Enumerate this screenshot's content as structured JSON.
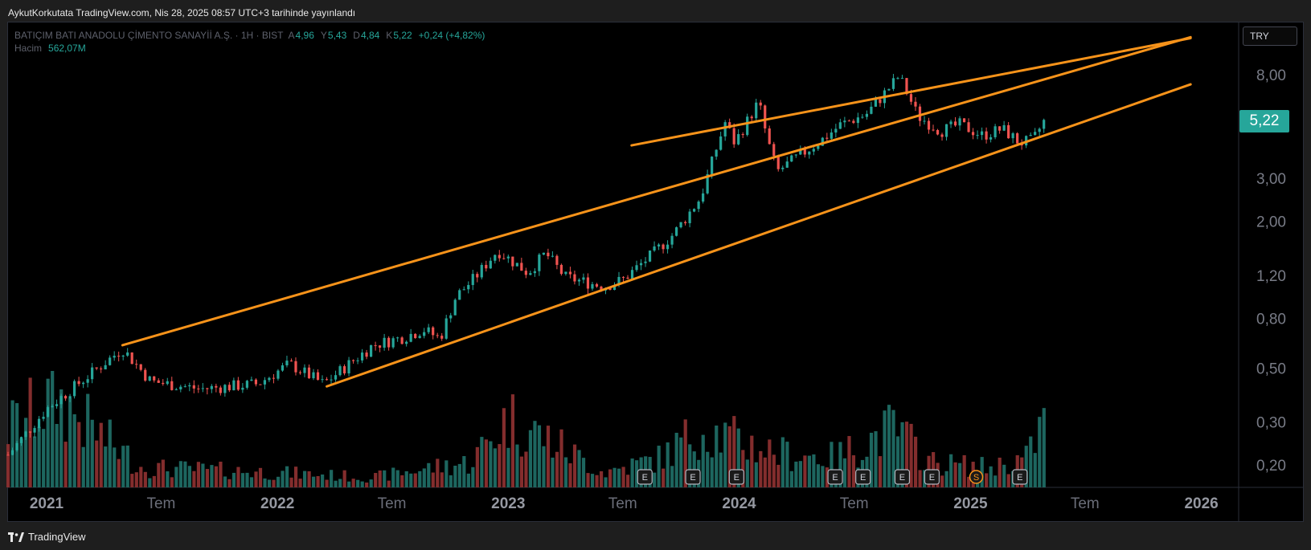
{
  "published": "AykutKorkutata TradingView.com, Nis 28, 2025 08:57 UTC+3 tarihinde yayınlandı",
  "legend": {
    "name": "BATIÇIM BATI ANADOLU ÇİMENTO SANAYİİ A.Ş. · 1H · BIST",
    "open_label": "A",
    "open": "4,96",
    "high_label": "Y",
    "high": "5,43",
    "low_label": "D",
    "low": "4,84",
    "close_label": "K",
    "close": "5,22",
    "change": "+0,24 (+4,82%)",
    "volume_label": "Hacim",
    "volume": "562,07M"
  },
  "currency": "TRY",
  "last_price": "5,22",
  "brand": "TradingView",
  "colors": {
    "up": "#26a69a",
    "down": "#ef5350",
    "trend": "#f7931a",
    "background": "#000000"
  },
  "chart_data": {
    "type": "candlestick",
    "interval": "1W",
    "y_scale": "log",
    "ylim": [
      0.16,
      12
    ],
    "y_ticks": [
      "8,00",
      "3,00",
      "2,00",
      "1,20",
      "0,80",
      "0,50",
      "0,30",
      "0,20"
    ],
    "y_tick_values": [
      8,
      3,
      2,
      1.2,
      0.8,
      0.5,
      0.3,
      0.2
    ],
    "x_ticks": [
      "2021",
      "Tem",
      "2022",
      "Tem",
      "2023",
      "Tem",
      "2024",
      "Tem",
      "2025",
      "Tem",
      "2026"
    ],
    "x_tick_bold": [
      true,
      false,
      true,
      false,
      true,
      false,
      true,
      false,
      true,
      false,
      true
    ],
    "x_tick_dates": [
      "2021-01-01",
      "2021-07-01",
      "2022-01-01",
      "2022-07-01",
      "2023-01-01",
      "2023-07-01",
      "2024-01-01",
      "2024-07-01",
      "2025-01-01",
      "2025-07-01",
      "2026-01-01"
    ],
    "price_path": [
      [
        "2020-11-01",
        0.22
      ],
      [
        "2021-01-01",
        0.34
      ],
      [
        "2021-05-01",
        0.6
      ],
      [
        "2021-06-15",
        0.44
      ],
      [
        "2021-09-01",
        0.41
      ],
      [
        "2021-12-01",
        0.43
      ],
      [
        "2022-01-20",
        0.52
      ],
      [
        "2022-03-15",
        0.43
      ],
      [
        "2022-06-01",
        0.62
      ],
      [
        "2022-07-20",
        0.67
      ],
      [
        "2022-08-20",
        0.72
      ],
      [
        "2022-09-15",
        0.66
      ],
      [
        "2022-10-10",
        0.98
      ],
      [
        "2022-11-10",
        1.18
      ],
      [
        "2022-12-15",
        1.52
      ],
      [
        "2023-02-01",
        1.23
      ],
      [
        "2023-03-01",
        1.48
      ],
      [
        "2023-04-01",
        1.18
      ],
      [
        "2023-06-01",
        1.08
      ],
      [
        "2023-07-01",
        1.15
      ],
      [
        "2023-08-15",
        1.45
      ],
      [
        "2023-09-20",
        1.78
      ],
      [
        "2023-11-01",
        2.5
      ],
      [
        "2023-11-25",
        3.9
      ],
      [
        "2023-12-10",
        5.1
      ],
      [
        "2023-12-25",
        4.2
      ],
      [
        "2024-02-01",
        6.2
      ],
      [
        "2024-02-15",
        4.3
      ],
      [
        "2024-03-01",
        3.2
      ],
      [
        "2024-04-01",
        3.65
      ],
      [
        "2024-05-15",
        4.4
      ],
      [
        "2024-06-10",
        5.0
      ],
      [
        "2024-07-20",
        5.5
      ],
      [
        "2024-08-20",
        6.8
      ],
      [
        "2024-09-10",
        7.9
      ],
      [
        "2024-10-10",
        5.4
      ],
      [
        "2024-11-15",
        4.7
      ],
      [
        "2024-12-15",
        5.0
      ],
      [
        "2025-01-20",
        4.5
      ],
      [
        "2025-02-20",
        4.8
      ],
      [
        "2025-03-20",
        4.2
      ],
      [
        "2025-04-10",
        4.3
      ],
      [
        "2025-04-28",
        5.22
      ]
    ],
    "volume_path": [
      [
        "2020-11-01",
        0.6
      ],
      [
        "2021-01-15",
        0.9
      ],
      [
        "2021-04-01",
        0.5
      ],
      [
        "2021-06-01",
        0.2
      ],
      [
        "2022-01-01",
        0.15
      ],
      [
        "2022-06-01",
        0.1
      ],
      [
        "2022-09-01",
        0.2
      ],
      [
        "2022-11-01",
        0.25
      ],
      [
        "2023-01-01",
        0.7
      ],
      [
        "2023-03-01",
        0.5
      ],
      [
        "2023-06-01",
        0.15
      ],
      [
        "2023-09-01",
        0.3
      ],
      [
        "2023-11-01",
        0.6
      ],
      [
        "2023-12-15",
        0.5
      ],
      [
        "2024-03-01",
        0.35
      ],
      [
        "2024-06-01",
        0.3
      ],
      [
        "2024-09-01",
        0.6
      ],
      [
        "2024-11-01",
        0.25
      ],
      [
        "2025-02-01",
        0.2
      ],
      [
        "2025-04-01",
        0.3
      ],
      [
        "2025-04-28",
        0.7
      ]
    ],
    "events": [
      {
        "label": "E",
        "date": "2023-08-05"
      },
      {
        "label": "E",
        "date": "2023-10-20"
      },
      {
        "label": "E",
        "date": "2023-12-28"
      },
      {
        "label": "E",
        "date": "2024-06-01"
      },
      {
        "label": "E",
        "date": "2024-07-15"
      },
      {
        "label": "E",
        "date": "2024-09-15"
      },
      {
        "label": "E",
        "date": "2024-11-01"
      },
      {
        "label": "S",
        "date": "2025-01-10"
      },
      {
        "label": "E",
        "date": "2025-03-20"
      }
    ],
    "trendlines": [
      {
        "from": [
          "2021-05-01",
          0.62
        ],
        "to": [
          "2025-12-15",
          11.4
        ]
      },
      {
        "from": [
          "2023-07-15",
          4.1
        ],
        "to": [
          "2025-12-15",
          11.3
        ]
      },
      {
        "from": [
          "2022-03-20",
          0.42
        ],
        "to": [
          "2025-12-15",
          7.3
        ]
      }
    ],
    "grid": false,
    "legend_position": "top-left"
  }
}
